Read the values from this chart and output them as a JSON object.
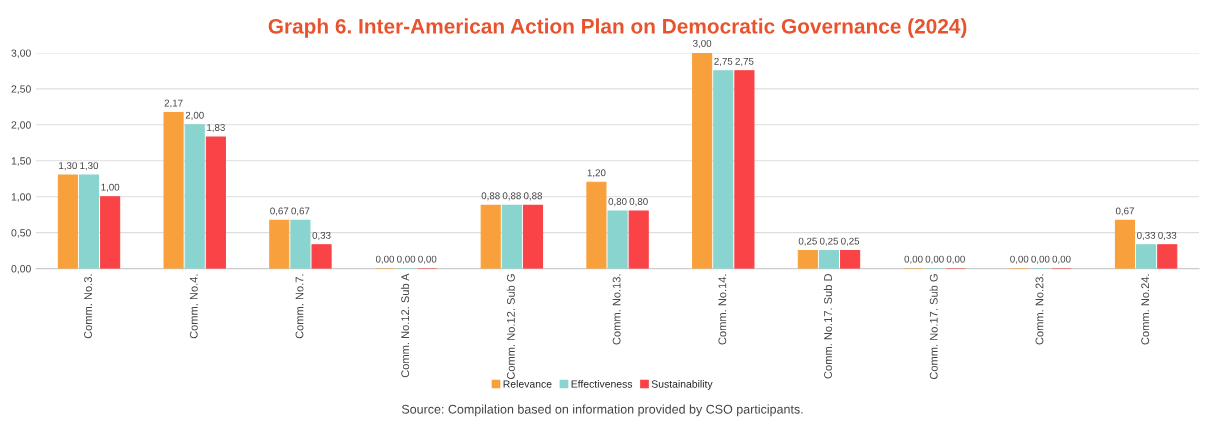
{
  "chart_data": {
    "type": "bar",
    "title": "Graph 6. Inter-American Action Plan on Democratic Governance (2024)",
    "categories": [
      "Comm. No.3.",
      "Comm. No.4.",
      "Comm. No.7.",
      "Comm. No.12. Sub A",
      "Comm. No.12. Sub G",
      "Comm. No.13.",
      "Comm. No.14.",
      "Comm. No.17. Sub D",
      "Comm. No.17. Sub G",
      "Comm. No.23.",
      "Comm. No.24."
    ],
    "series": [
      {
        "name": "Relevance",
        "color": "#f8a13c",
        "values": [
          1.3,
          2.17,
          0.67,
          0,
          0.88,
          1.2,
          3.0,
          0.25,
          0,
          0,
          0.67
        ],
        "value_labels": [
          "1,30",
          "2,17",
          "0,67",
          "0,00",
          "0,88",
          "1,20",
          "3,00",
          "0,25",
          "0,00",
          "0,00",
          "0,67"
        ]
      },
      {
        "name": "Effectiveness",
        "color": "#89d4cf",
        "values": [
          1.3,
          2.0,
          0.67,
          0,
          0.88,
          0.8,
          2.75,
          0.25,
          0,
          0,
          0.33
        ],
        "value_labels": [
          "1,30",
          "2,00",
          "0,67",
          "0,00",
          "0,88",
          "0,80",
          "2,75",
          "0,25",
          "0,00",
          "0,00",
          "0,33"
        ]
      },
      {
        "name": "Sustainability",
        "color": "#f94346",
        "values": [
          1.0,
          1.83,
          0.33,
          0,
          0.88,
          0.8,
          2.75,
          0.25,
          0,
          0,
          0.33
        ],
        "value_labels": [
          "1,00",
          "1,83",
          "0,33",
          "0,00",
          "0,88",
          "0,80",
          "2,75",
          "0,25",
          "0,00",
          "0,00",
          "0,33"
        ]
      }
    ],
    "ylim": [
      0,
      3
    ],
    "yticks": [
      {
        "value": 0,
        "label": "0,00"
      },
      {
        "value": 0.5,
        "label": "0,50"
      },
      {
        "value": 1,
        "label": "1,00"
      },
      {
        "value": 1.5,
        "label": "1,50"
      },
      {
        "value": 2,
        "label": "2,00"
      },
      {
        "value": 2.5,
        "label": "2,50"
      },
      {
        "value": 3,
        "label": "3,00"
      }
    ],
    "grid": "y",
    "legend": "bottom",
    "annotations": [
      "Source: Compilation based on information provided by CSO participants."
    ]
  }
}
